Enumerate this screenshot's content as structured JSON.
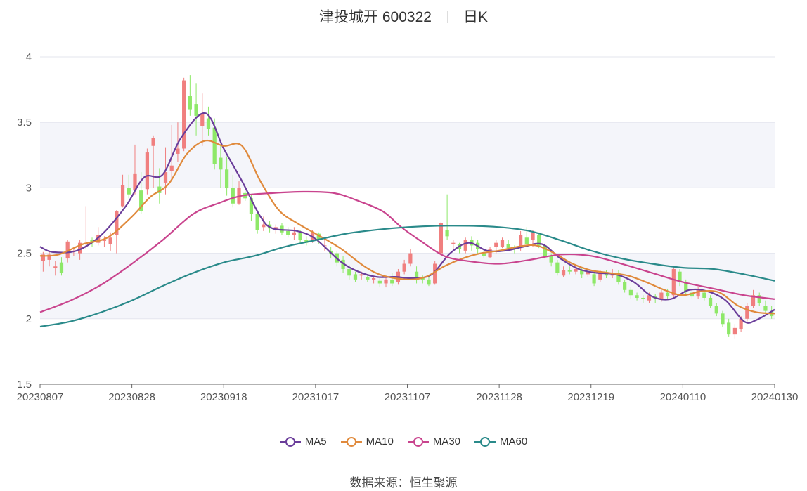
{
  "header": {
    "stock_name": "津投城开",
    "stock_code": "600322",
    "period": "日K"
  },
  "legend": [
    {
      "name": "MA5",
      "color": "#6a3d9a"
    },
    {
      "name": "MA10",
      "color": "#e08a3c"
    },
    {
      "name": "MA30",
      "color": "#c9448e"
    },
    {
      "name": "MA60",
      "color": "#2a8a8a"
    }
  ],
  "source": "数据来源：恒生聚源",
  "colors": {
    "up": "#f07f7f",
    "down": "#8ee868",
    "grid": "#e3e5ee",
    "band": "#f4f5fa",
    "axis": "#666666"
  },
  "chart_data": {
    "type": "candlestick",
    "x_ticks": [
      "20230807",
      "20230828",
      "20230918",
      "20231017",
      "20231107",
      "20231128",
      "20231219",
      "20240110",
      "20240130"
    ],
    "y_ticks": [
      "1.5",
      "2",
      "2.5",
      "3",
      "3.5",
      "4"
    ],
    "ylim": [
      1.5,
      4
    ],
    "trading_days": 120,
    "candles": [
      [
        2.44,
        2.49,
        2.36,
        2.51
      ],
      [
        2.45,
        2.49,
        2.4,
        2.51
      ],
      [
        2.39,
        2.4,
        2.33,
        2.44
      ],
      [
        2.43,
        2.35,
        2.33,
        2.47
      ],
      [
        2.46,
        2.59,
        2.43,
        2.6
      ],
      [
        2.52,
        2.52,
        2.48,
        2.55
      ],
      [
        2.5,
        2.58,
        2.45,
        2.6
      ],
      [
        2.58,
        2.58,
        2.53,
        2.86
      ],
      [
        2.6,
        2.58,
        2.55,
        2.62
      ],
      [
        2.58,
        2.64,
        2.56,
        2.7
      ],
      [
        2.6,
        2.6,
        2.55,
        2.63
      ],
      [
        2.57,
        2.62,
        2.52,
        2.66
      ],
      [
        2.64,
        2.82,
        2.5,
        2.83
      ],
      [
        2.86,
        3.02,
        2.85,
        3.1
      ],
      [
        3.0,
        2.95,
        2.92,
        3.1
      ],
      [
        2.98,
        3.11,
        2.95,
        3.33
      ],
      [
        2.98,
        2.82,
        2.8,
        3.12
      ],
      [
        2.99,
        3.27,
        2.95,
        3.3
      ],
      [
        3.32,
        3.38,
        3.0,
        3.4
      ],
      [
        3.01,
        2.96,
        2.88,
        3.15
      ],
      [
        3.04,
        3.12,
        2.95,
        3.31
      ],
      [
        3.13,
        3.17,
        3.05,
        3.48
      ],
      [
        3.26,
        3.3,
        3.2,
        3.5
      ],
      [
        3.3,
        3.82,
        3.28,
        3.84
      ],
      [
        3.7,
        3.6,
        3.55,
        3.86
      ],
      [
        3.64,
        3.55,
        3.4,
        3.8
      ],
      [
        3.47,
        3.56,
        3.32,
        3.72
      ],
      [
        3.53,
        3.45,
        3.4,
        3.62
      ],
      [
        3.46,
        3.18,
        3.14,
        3.53
      ],
      [
        3.23,
        3.14,
        3.0,
        3.33
      ],
      [
        3.14,
        3.0,
        2.94,
        3.24
      ],
      [
        3.0,
        2.88,
        2.85,
        3.1
      ],
      [
        2.88,
        3.0,
        2.87,
        3.05
      ],
      [
        2.96,
        2.92,
        2.9,
        2.98
      ],
      [
        2.92,
        2.8,
        2.75,
        2.95
      ],
      [
        2.8,
        2.68,
        2.65,
        2.83
      ],
      [
        2.7,
        2.72,
        2.67,
        2.78
      ],
      [
        2.72,
        2.69,
        2.66,
        2.75
      ],
      [
        2.68,
        2.7,
        2.65,
        2.72
      ],
      [
        2.71,
        2.66,
        2.64,
        2.73
      ],
      [
        2.67,
        2.64,
        2.62,
        2.7
      ],
      [
        2.64,
        2.66,
        2.6,
        2.7
      ],
      [
        2.66,
        2.6,
        2.58,
        2.68
      ],
      [
        2.6,
        2.58,
        2.56,
        2.63
      ],
      [
        2.6,
        2.66,
        2.58,
        2.68
      ],
      [
        2.65,
        2.6,
        2.57,
        2.66
      ],
      [
        2.56,
        2.56,
        2.52,
        2.6
      ],
      [
        2.52,
        2.5,
        2.46,
        2.55
      ],
      [
        2.5,
        2.43,
        2.4,
        2.52
      ],
      [
        2.45,
        2.38,
        2.35,
        2.48
      ],
      [
        2.38,
        2.33,
        2.3,
        2.41
      ],
      [
        2.34,
        2.3,
        2.28,
        2.36
      ],
      [
        2.33,
        2.34,
        2.3,
        2.36
      ],
      [
        2.32,
        2.3,
        2.28,
        2.34
      ],
      [
        2.3,
        2.31,
        2.27,
        2.33
      ],
      [
        2.29,
        2.27,
        2.24,
        2.31
      ],
      [
        2.27,
        2.3,
        2.24,
        2.33
      ],
      [
        2.3,
        2.27,
        2.25,
        2.35
      ],
      [
        2.28,
        2.36,
        2.26,
        2.38
      ],
      [
        2.36,
        2.42,
        2.34,
        2.45
      ],
      [
        2.42,
        2.5,
        2.4,
        2.53
      ],
      [
        2.36,
        2.3,
        2.27,
        2.4
      ],
      [
        2.31,
        2.3,
        2.27,
        2.33
      ],
      [
        2.3,
        2.26,
        2.25,
        2.32
      ],
      [
        2.27,
        2.42,
        2.26,
        2.44
      ],
      [
        2.5,
        2.73,
        2.48,
        2.74
      ],
      [
        2.68,
        2.63,
        2.6,
        2.95
      ],
      [
        2.57,
        2.58,
        2.52,
        2.6
      ],
      [
        2.57,
        2.53,
        2.5,
        2.58
      ],
      [
        2.52,
        2.6,
        2.5,
        2.62
      ],
      [
        2.6,
        2.56,
        2.52,
        2.63
      ],
      [
        2.58,
        2.53,
        2.5,
        2.6
      ],
      [
        2.5,
        2.48,
        2.46,
        2.53
      ],
      [
        2.47,
        2.53,
        2.46,
        2.55
      ],
      [
        2.55,
        2.58,
        2.5,
        2.6
      ],
      [
        2.55,
        2.6,
        2.54,
        2.62
      ],
      [
        2.57,
        2.54,
        2.52,
        2.6
      ],
      [
        2.54,
        2.53,
        2.5,
        2.56
      ],
      [
        2.54,
        2.64,
        2.52,
        2.67
      ],
      [
        2.62,
        2.57,
        2.55,
        2.7
      ],
      [
        2.6,
        2.66,
        2.55,
        2.68
      ],
      [
        2.64,
        2.56,
        2.54,
        2.66
      ],
      [
        2.56,
        2.48,
        2.45,
        2.58
      ],
      [
        2.48,
        2.43,
        2.4,
        2.5
      ],
      [
        2.43,
        2.35,
        2.33,
        2.45
      ],
      [
        2.33,
        2.37,
        2.32,
        2.4
      ],
      [
        2.37,
        2.36,
        2.34,
        2.4
      ],
      [
        2.36,
        2.38,
        2.34,
        2.41
      ],
      [
        2.37,
        2.34,
        2.31,
        2.39
      ],
      [
        2.34,
        2.36,
        2.32,
        2.38
      ],
      [
        2.34,
        2.27,
        2.25,
        2.36
      ],
      [
        2.3,
        2.35,
        2.28,
        2.37
      ],
      [
        2.35,
        2.33,
        2.31,
        2.37
      ],
      [
        2.33,
        2.35,
        2.31,
        2.38
      ],
      [
        2.35,
        2.28,
        2.26,
        2.37
      ],
      [
        2.28,
        2.22,
        2.2,
        2.3
      ],
      [
        2.22,
        2.18,
        2.15,
        2.24
      ],
      [
        2.18,
        2.16,
        2.14,
        2.2
      ],
      [
        2.16,
        2.15,
        2.12,
        2.18
      ],
      [
        2.14,
        2.18,
        2.12,
        2.2
      ],
      [
        2.17,
        2.15,
        2.12,
        2.19
      ],
      [
        2.15,
        2.2,
        2.13,
        2.22
      ],
      [
        2.2,
        2.17,
        2.15,
        2.23
      ],
      [
        2.18,
        2.38,
        2.16,
        2.4
      ],
      [
        2.36,
        2.28,
        2.25,
        2.38
      ],
      [
        2.28,
        2.21,
        2.18,
        2.3
      ],
      [
        2.2,
        2.17,
        2.15,
        2.22
      ],
      [
        2.17,
        2.22,
        2.15,
        2.24
      ],
      [
        2.2,
        2.16,
        2.14,
        2.22
      ],
      [
        2.16,
        2.1,
        2.08,
        2.18
      ],
      [
        2.1,
        2.04,
        2.02,
        2.12
      ],
      [
        2.04,
        1.96,
        1.94,
        2.06
      ],
      [
        1.97,
        1.88,
        1.86,
        2.0
      ],
      [
        1.88,
        1.93,
        1.85,
        1.96
      ],
      [
        1.92,
        2.0,
        1.9,
        2.02
      ],
      [
        2.0,
        2.1,
        1.98,
        2.12
      ],
      [
        2.1,
        2.18,
        2.08,
        2.22
      ],
      [
        2.18,
        2.12,
        2.1,
        2.2
      ],
      [
        2.1,
        2.06,
        2.04,
        2.14
      ],
      [
        2.06,
        2.02,
        2.0,
        2.1
      ]
    ],
    "ma": {
      "MA5": [
        [
          0,
          2.55
        ],
        [
          2,
          2.51
        ],
        [
          6,
          2.52
        ],
        [
          10,
          2.64
        ],
        [
          14,
          2.86
        ],
        [
          17,
          3.08
        ],
        [
          20,
          3.1
        ],
        [
          23,
          3.38
        ],
        [
          27,
          3.57
        ],
        [
          30,
          3.3
        ],
        [
          33,
          3.05
        ],
        [
          36,
          2.78
        ],
        [
          38,
          2.69
        ],
        [
          42,
          2.67
        ],
        [
          45,
          2.61
        ],
        [
          49,
          2.44
        ],
        [
          52,
          2.36
        ],
        [
          55,
          2.32
        ],
        [
          58,
          2.32
        ],
        [
          61,
          2.31
        ],
        [
          64,
          2.34
        ],
        [
          67,
          2.5
        ],
        [
          70,
          2.58
        ],
        [
          73,
          2.52
        ],
        [
          76,
          2.52
        ],
        [
          79,
          2.55
        ],
        [
          82,
          2.57
        ],
        [
          85,
          2.46
        ],
        [
          88,
          2.38
        ],
        [
          91,
          2.35
        ],
        [
          94,
          2.34
        ],
        [
          97,
          2.28
        ],
        [
          100,
          2.17
        ],
        [
          103,
          2.15
        ],
        [
          106,
          2.22
        ],
        [
          109,
          2.21
        ],
        [
          112,
          2.14
        ],
        [
          115,
          1.98
        ],
        [
          117,
          1.99
        ],
        [
          120,
          2.07
        ]
      ],
      "MA10": [
        [
          0,
          2.48
        ],
        [
          3,
          2.49
        ],
        [
          7,
          2.57
        ],
        [
          11,
          2.62
        ],
        [
          15,
          2.78
        ],
        [
          18,
          2.93
        ],
        [
          21,
          3.03
        ],
        [
          24,
          3.26
        ],
        [
          27,
          3.36
        ],
        [
          30,
          3.32
        ],
        [
          33,
          3.32
        ],
        [
          36,
          3.05
        ],
        [
          39,
          2.83
        ],
        [
          42,
          2.73
        ],
        [
          45,
          2.65
        ],
        [
          49,
          2.54
        ],
        [
          53,
          2.4
        ],
        [
          56,
          2.33
        ],
        [
          60,
          2.3
        ],
        [
          63,
          2.32
        ],
        [
          66,
          2.4
        ],
        [
          69,
          2.46
        ],
        [
          72,
          2.5
        ],
        [
          75,
          2.52
        ],
        [
          78,
          2.55
        ],
        [
          81,
          2.56
        ],
        [
          84,
          2.5
        ],
        [
          87,
          2.42
        ],
        [
          90,
          2.37
        ],
        [
          93,
          2.35
        ],
        [
          96,
          2.33
        ],
        [
          99,
          2.28
        ],
        [
          102,
          2.22
        ],
        [
          105,
          2.18
        ],
        [
          108,
          2.21
        ],
        [
          111,
          2.2
        ],
        [
          114,
          2.1
        ],
        [
          117,
          2.05
        ],
        [
          120,
          2.04
        ]
      ],
      "MA30": [
        [
          0,
          2.05
        ],
        [
          5,
          2.14
        ],
        [
          10,
          2.26
        ],
        [
          15,
          2.42
        ],
        [
          20,
          2.6
        ],
        [
          25,
          2.8
        ],
        [
          29,
          2.88
        ],
        [
          33,
          2.94
        ],
        [
          38,
          2.96
        ],
        [
          43,
          2.97
        ],
        [
          48,
          2.96
        ],
        [
          52,
          2.9
        ],
        [
          56,
          2.82
        ],
        [
          59,
          2.7
        ],
        [
          62,
          2.6
        ],
        [
          66,
          2.48
        ],
        [
          70,
          2.44
        ],
        [
          75,
          2.42
        ],
        [
          80,
          2.45
        ],
        [
          85,
          2.49
        ],
        [
          90,
          2.48
        ],
        [
          95,
          2.42
        ],
        [
          100,
          2.35
        ],
        [
          105,
          2.28
        ],
        [
          110,
          2.23
        ],
        [
          115,
          2.18
        ],
        [
          120,
          2.15
        ]
      ],
      "MA60": [
        [
          0,
          1.94
        ],
        [
          5,
          1.98
        ],
        [
          10,
          2.05
        ],
        [
          15,
          2.14
        ],
        [
          20,
          2.25
        ],
        [
          25,
          2.35
        ],
        [
          30,
          2.43
        ],
        [
          35,
          2.48
        ],
        [
          40,
          2.55
        ],
        [
          45,
          2.6
        ],
        [
          50,
          2.65
        ],
        [
          55,
          2.68
        ],
        [
          60,
          2.7
        ],
        [
          65,
          2.71
        ],
        [
          70,
          2.71
        ],
        [
          75,
          2.7
        ],
        [
          80,
          2.67
        ],
        [
          85,
          2.6
        ],
        [
          90,
          2.52
        ],
        [
          95,
          2.46
        ],
        [
          100,
          2.42
        ],
        [
          105,
          2.39
        ],
        [
          110,
          2.38
        ],
        [
          115,
          2.34
        ],
        [
          120,
          2.29
        ]
      ]
    }
  }
}
